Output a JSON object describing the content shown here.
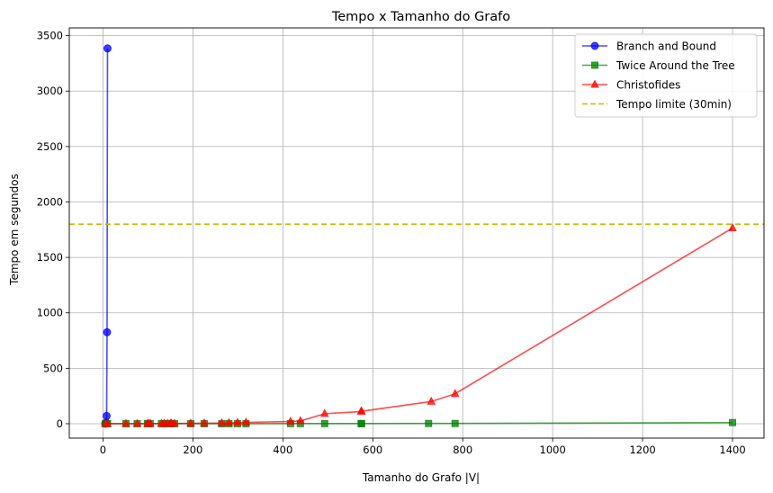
{
  "chart_data": {
    "type": "line",
    "title": "Tempo x Tamanho do Grafo",
    "xlabel": "Tamanho do Grafo |V|",
    "ylabel": "Tempo em segundos",
    "xlim": [
      -75,
      1470
    ],
    "ylim": [
      -130,
      3570
    ],
    "xticks": [
      0,
      200,
      400,
      600,
      800,
      1000,
      1200,
      1400
    ],
    "yticks": [
      0,
      500,
      1000,
      1500,
      2000,
      2500,
      3000,
      3500
    ],
    "grid": true,
    "legend_position": "top-right",
    "series": [
      {
        "name": "Branch and Bound",
        "color": "#0000ff",
        "marker": "circle",
        "linestyle": "solid",
        "x": [
          5,
          6,
          7,
          8,
          9,
          10
        ],
        "y": [
          0,
          2,
          10,
          70,
          825,
          3385
        ]
      },
      {
        "name": "Twice Around the Tree",
        "color": "#008000",
        "marker": "square",
        "linestyle": "solid",
        "x": [
          5,
          10,
          51,
          76,
          99,
          101,
          105,
          130,
          136,
          144,
          150,
          152,
          159,
          195,
          225,
          264,
          280,
          299,
          318,
          417,
          439,
          493,
          574,
          575,
          724,
          783,
          1400
        ],
        "y": [
          0,
          0,
          0,
          0,
          0,
          0,
          0,
          0,
          0,
          0,
          0,
          0,
          0,
          0,
          0,
          0,
          0,
          0,
          0,
          1,
          1,
          1,
          1,
          1,
          2,
          2,
          10
        ]
      },
      {
        "name": "Christofides",
        "color": "#ff0000",
        "marker": "triangle",
        "linestyle": "solid",
        "x": [
          5,
          10,
          51,
          76,
          99,
          101,
          105,
          130,
          136,
          144,
          150,
          152,
          159,
          195,
          225,
          264,
          280,
          299,
          318,
          417,
          439,
          493,
          574,
          575,
          730,
          783,
          1400
        ],
        "y": [
          0,
          0,
          0,
          0,
          0,
          1,
          1,
          1,
          1,
          1,
          2,
          2,
          2,
          3,
          4,
          6,
          8,
          10,
          12,
          20,
          25,
          90,
          110,
          112,
          200,
          270,
          1765
        ]
      },
      {
        "name": "Tempo limite (30min)",
        "color": "#bfbf00",
        "marker": "none",
        "linestyle": "dashed",
        "y_constant": 1800
      }
    ]
  }
}
